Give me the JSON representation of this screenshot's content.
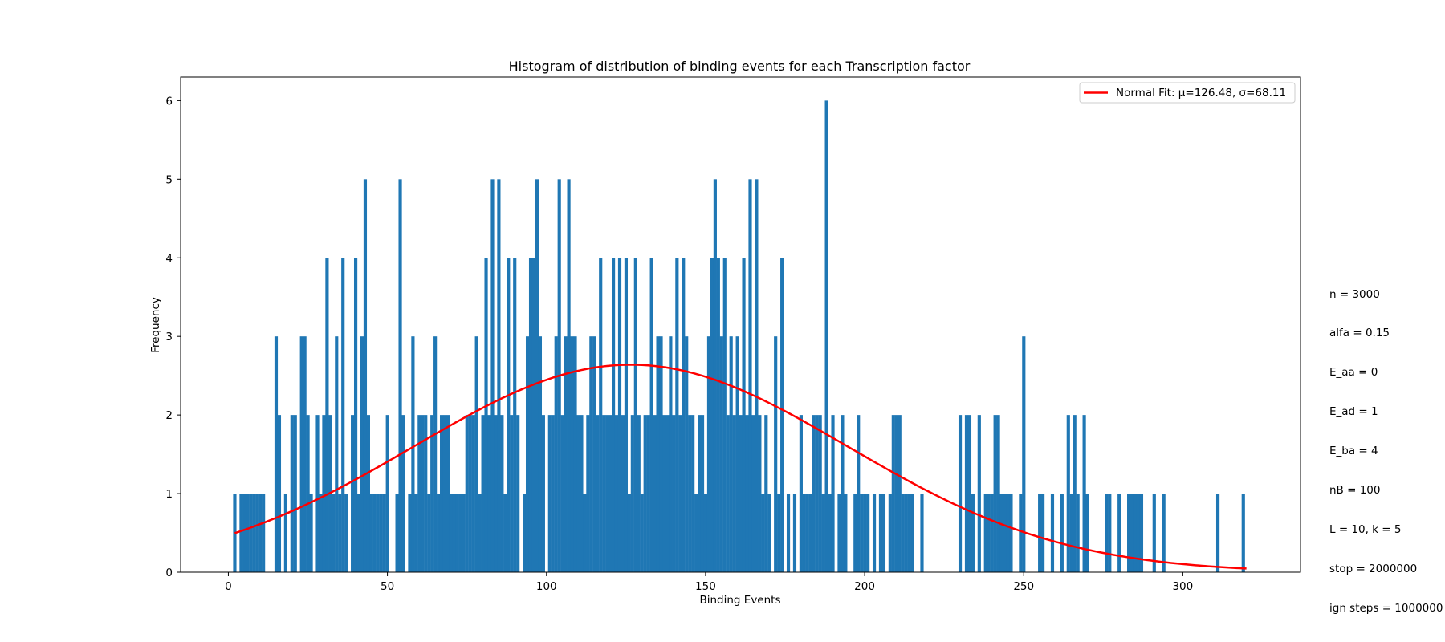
{
  "chart_data": {
    "type": "bar",
    "title": "Histogram of distribution of binding events for each Transcription factor",
    "xlabel": "Binding Events",
    "ylabel": "Frequency",
    "xlim": [
      -15,
      337
    ],
    "ylim": [
      0,
      6.3
    ],
    "xticks": [
      0,
      50,
      100,
      150,
      200,
      250,
      300
    ],
    "yticks": [
      0,
      1,
      2,
      3,
      4,
      5,
      6
    ],
    "bar_color": "#1f77b4",
    "bars": [
      {
        "x": 2,
        "y": 1
      },
      {
        "x": 4,
        "y": 1
      },
      {
        "x": 5,
        "y": 1
      },
      {
        "x": 6,
        "y": 1
      },
      {
        "x": 7,
        "y": 1
      },
      {
        "x": 8,
        "y": 1
      },
      {
        "x": 9,
        "y": 1
      },
      {
        "x": 10,
        "y": 1
      },
      {
        "x": 11,
        "y": 1
      },
      {
        "x": 15,
        "y": 3
      },
      {
        "x": 16,
        "y": 2
      },
      {
        "x": 18,
        "y": 1
      },
      {
        "x": 20,
        "y": 2
      },
      {
        "x": 21,
        "y": 2
      },
      {
        "x": 23,
        "y": 3
      },
      {
        "x": 24,
        "y": 3
      },
      {
        "x": 25,
        "y": 2
      },
      {
        "x": 26,
        "y": 1
      },
      {
        "x": 28,
        "y": 2
      },
      {
        "x": 29,
        "y": 1
      },
      {
        "x": 30,
        "y": 2
      },
      {
        "x": 31,
        "y": 4
      },
      {
        "x": 32,
        "y": 2
      },
      {
        "x": 33,
        "y": 1
      },
      {
        "x": 34,
        "y": 3
      },
      {
        "x": 35,
        "y": 1
      },
      {
        "x": 36,
        "y": 4
      },
      {
        "x": 37,
        "y": 1
      },
      {
        "x": 39,
        "y": 2
      },
      {
        "x": 40,
        "y": 4
      },
      {
        "x": 41,
        "y": 1
      },
      {
        "x": 42,
        "y": 3
      },
      {
        "x": 43,
        "y": 5
      },
      {
        "x": 44,
        "y": 2
      },
      {
        "x": 45,
        "y": 1
      },
      {
        "x": 46,
        "y": 1
      },
      {
        "x": 47,
        "y": 1
      },
      {
        "x": 48,
        "y": 1
      },
      {
        "x": 49,
        "y": 1
      },
      {
        "x": 50,
        "y": 2
      },
      {
        "x": 53,
        "y": 1
      },
      {
        "x": 54,
        "y": 5
      },
      {
        "x": 55,
        "y": 2
      },
      {
        "x": 57,
        "y": 1
      },
      {
        "x": 58,
        "y": 3
      },
      {
        "x": 59,
        "y": 1
      },
      {
        "x": 60,
        "y": 2
      },
      {
        "x": 61,
        "y": 2
      },
      {
        "x": 62,
        "y": 2
      },
      {
        "x": 63,
        "y": 1
      },
      {
        "x": 64,
        "y": 2
      },
      {
        "x": 65,
        "y": 3
      },
      {
        "x": 66,
        "y": 1
      },
      {
        "x": 67,
        "y": 2
      },
      {
        "x": 68,
        "y": 2
      },
      {
        "x": 69,
        "y": 2
      },
      {
        "x": 70,
        "y": 1
      },
      {
        "x": 71,
        "y": 1
      },
      {
        "x": 72,
        "y": 1
      },
      {
        "x": 73,
        "y": 1
      },
      {
        "x": 74,
        "y": 1
      },
      {
        "x": 75,
        "y": 2
      },
      {
        "x": 76,
        "y": 2
      },
      {
        "x": 77,
        "y": 2
      },
      {
        "x": 78,
        "y": 3
      },
      {
        "x": 79,
        "y": 1
      },
      {
        "x": 80,
        "y": 2
      },
      {
        "x": 81,
        "y": 4
      },
      {
        "x": 82,
        "y": 2
      },
      {
        "x": 83,
        "y": 5
      },
      {
        "x": 84,
        "y": 2
      },
      {
        "x": 85,
        "y": 5
      },
      {
        "x": 86,
        "y": 2
      },
      {
        "x": 87,
        "y": 1
      },
      {
        "x": 88,
        "y": 4
      },
      {
        "x": 89,
        "y": 2
      },
      {
        "x": 90,
        "y": 4
      },
      {
        "x": 91,
        "y": 2
      },
      {
        "x": 93,
        "y": 1
      },
      {
        "x": 94,
        "y": 3
      },
      {
        "x": 95,
        "y": 4
      },
      {
        "x": 96,
        "y": 4
      },
      {
        "x": 97,
        "y": 5
      },
      {
        "x": 98,
        "y": 3
      },
      {
        "x": 99,
        "y": 2
      },
      {
        "x": 101,
        "y": 2
      },
      {
        "x": 102,
        "y": 2
      },
      {
        "x": 103,
        "y": 3
      },
      {
        "x": 104,
        "y": 5
      },
      {
        "x": 105,
        "y": 2
      },
      {
        "x": 106,
        "y": 3
      },
      {
        "x": 107,
        "y": 5
      },
      {
        "x": 108,
        "y": 3
      },
      {
        "x": 109,
        "y": 3
      },
      {
        "x": 110,
        "y": 2
      },
      {
        "x": 111,
        "y": 2
      },
      {
        "x": 112,
        "y": 1
      },
      {
        "x": 113,
        "y": 2
      },
      {
        "x": 114,
        "y": 3
      },
      {
        "x": 115,
        "y": 3
      },
      {
        "x": 116,
        "y": 2
      },
      {
        "x": 117,
        "y": 4
      },
      {
        "x": 118,
        "y": 2
      },
      {
        "x": 119,
        "y": 2
      },
      {
        "x": 120,
        "y": 2
      },
      {
        "x": 121,
        "y": 4
      },
      {
        "x": 122,
        "y": 2
      },
      {
        "x": 123,
        "y": 4
      },
      {
        "x": 124,
        "y": 2
      },
      {
        "x": 125,
        "y": 4
      },
      {
        "x": 126,
        "y": 1
      },
      {
        "x": 127,
        "y": 2
      },
      {
        "x": 128,
        "y": 4
      },
      {
        "x": 129,
        "y": 2
      },
      {
        "x": 130,
        "y": 1
      },
      {
        "x": 131,
        "y": 2
      },
      {
        "x": 132,
        "y": 2
      },
      {
        "x": 133,
        "y": 4
      },
      {
        "x": 134,
        "y": 2
      },
      {
        "x": 135,
        "y": 3
      },
      {
        "x": 136,
        "y": 3
      },
      {
        "x": 137,
        "y": 2
      },
      {
        "x": 138,
        "y": 2
      },
      {
        "x": 139,
        "y": 3
      },
      {
        "x": 140,
        "y": 2
      },
      {
        "x": 141,
        "y": 4
      },
      {
        "x": 142,
        "y": 2
      },
      {
        "x": 143,
        "y": 4
      },
      {
        "x": 144,
        "y": 3
      },
      {
        "x": 145,
        "y": 2
      },
      {
        "x": 146,
        "y": 2
      },
      {
        "x": 147,
        "y": 1
      },
      {
        "x": 148,
        "y": 2
      },
      {
        "x": 149,
        "y": 2
      },
      {
        "x": 150,
        "y": 1
      },
      {
        "x": 151,
        "y": 3
      },
      {
        "x": 152,
        "y": 4
      },
      {
        "x": 153,
        "y": 5
      },
      {
        "x": 154,
        "y": 4
      },
      {
        "x": 155,
        "y": 3
      },
      {
        "x": 156,
        "y": 4
      },
      {
        "x": 157,
        "y": 2
      },
      {
        "x": 158,
        "y": 3
      },
      {
        "x": 159,
        "y": 2
      },
      {
        "x": 160,
        "y": 3
      },
      {
        "x": 161,
        "y": 2
      },
      {
        "x": 162,
        "y": 4
      },
      {
        "x": 163,
        "y": 2
      },
      {
        "x": 164,
        "y": 5
      },
      {
        "x": 165,
        "y": 2
      },
      {
        "x": 166,
        "y": 5
      },
      {
        "x": 167,
        "y": 2
      },
      {
        "x": 168,
        "y": 1
      },
      {
        "x": 169,
        "y": 2
      },
      {
        "x": 170,
        "y": 1
      },
      {
        "x": 172,
        "y": 3
      },
      {
        "x": 173,
        "y": 1
      },
      {
        "x": 174,
        "y": 4
      },
      {
        "x": 176,
        "y": 1
      },
      {
        "x": 178,
        "y": 1
      },
      {
        "x": 180,
        "y": 2
      },
      {
        "x": 181,
        "y": 1
      },
      {
        "x": 182,
        "y": 1
      },
      {
        "x": 183,
        "y": 1
      },
      {
        "x": 184,
        "y": 2
      },
      {
        "x": 185,
        "y": 2
      },
      {
        "x": 186,
        "y": 2
      },
      {
        "x": 187,
        "y": 1
      },
      {
        "x": 188,
        "y": 6
      },
      {
        "x": 189,
        "y": 1
      },
      {
        "x": 190,
        "y": 2
      },
      {
        "x": 192,
        "y": 1
      },
      {
        "x": 193,
        "y": 2
      },
      {
        "x": 194,
        "y": 1
      },
      {
        "x": 197,
        "y": 1
      },
      {
        "x": 198,
        "y": 2
      },
      {
        "x": 199,
        "y": 1
      },
      {
        "x": 200,
        "y": 1
      },
      {
        "x": 201,
        "y": 1
      },
      {
        "x": 203,
        "y": 1
      },
      {
        "x": 205,
        "y": 1
      },
      {
        "x": 206,
        "y": 1
      },
      {
        "x": 208,
        "y": 1
      },
      {
        "x": 209,
        "y": 2
      },
      {
        "x": 210,
        "y": 2
      },
      {
        "x": 211,
        "y": 2
      },
      {
        "x": 212,
        "y": 1
      },
      {
        "x": 213,
        "y": 1
      },
      {
        "x": 214,
        "y": 1
      },
      {
        "x": 215,
        "y": 1
      },
      {
        "x": 218,
        "y": 1
      },
      {
        "x": 230,
        "y": 2
      },
      {
        "x": 232,
        "y": 2
      },
      {
        "x": 233,
        "y": 2
      },
      {
        "x": 234,
        "y": 1
      },
      {
        "x": 236,
        "y": 2
      },
      {
        "x": 238,
        "y": 1
      },
      {
        "x": 239,
        "y": 1
      },
      {
        "x": 240,
        "y": 1
      },
      {
        "x": 241,
        "y": 2
      },
      {
        "x": 242,
        "y": 2
      },
      {
        "x": 243,
        "y": 1
      },
      {
        "x": 244,
        "y": 1
      },
      {
        "x": 245,
        "y": 1
      },
      {
        "x": 246,
        "y": 1
      },
      {
        "x": 249,
        "y": 1
      },
      {
        "x": 250,
        "y": 3
      },
      {
        "x": 255,
        "y": 1
      },
      {
        "x": 256,
        "y": 1
      },
      {
        "x": 259,
        "y": 1
      },
      {
        "x": 262,
        "y": 1
      },
      {
        "x": 264,
        "y": 2
      },
      {
        "x": 265,
        "y": 1
      },
      {
        "x": 266,
        "y": 2
      },
      {
        "x": 267,
        "y": 1
      },
      {
        "x": 269,
        "y": 2
      },
      {
        "x": 270,
        "y": 1
      },
      {
        "x": 276,
        "y": 1
      },
      {
        "x": 277,
        "y": 1
      },
      {
        "x": 280,
        "y": 1
      },
      {
        "x": 283,
        "y": 1
      },
      {
        "x": 284,
        "y": 1
      },
      {
        "x": 285,
        "y": 1
      },
      {
        "x": 286,
        "y": 1
      },
      {
        "x": 287,
        "y": 1
      },
      {
        "x": 291,
        "y": 1
      },
      {
        "x": 294,
        "y": 1
      },
      {
        "x": 311,
        "y": 1
      },
      {
        "x": 319,
        "y": 1
      }
    ],
    "fit": {
      "label": "Normal Fit: μ=126.48, σ=68.11",
      "mu": 126.48,
      "sigma": 68.11,
      "x_range": [
        2,
        320
      ],
      "peak": 2.64,
      "color": "#ff0000"
    },
    "legend_position": "top-right"
  },
  "parameters": [
    "n = 3000",
    "alfa = 0.15",
    "E_aa = 0",
    "E_ad = 1",
    "E_ba = 4",
    "nB = 100",
    "L = 10, k = 5",
    "stop = 2000000",
    "ign steps = 1000000"
  ]
}
